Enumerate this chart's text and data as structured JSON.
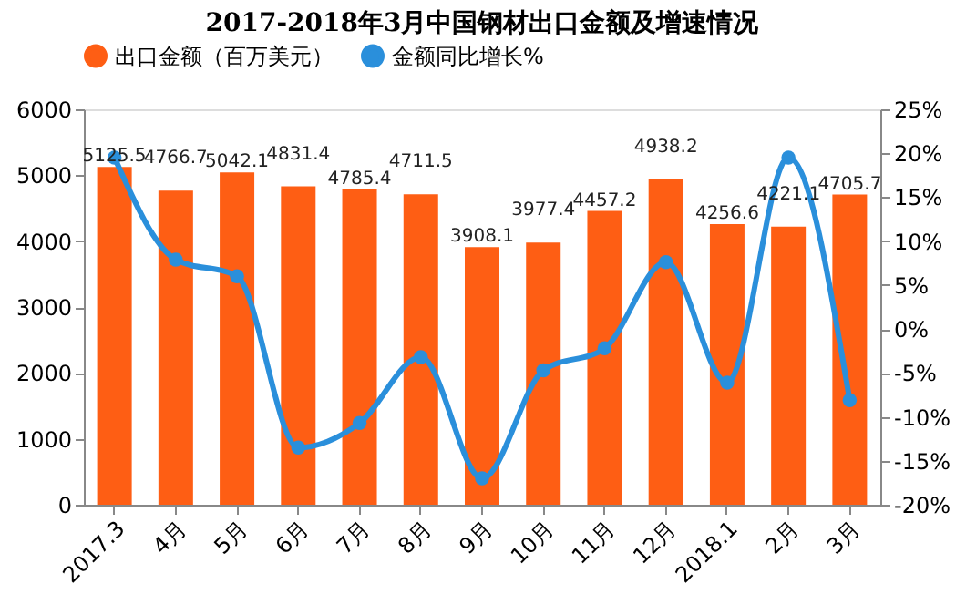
{
  "chart_data": {
    "type": "bar",
    "title": "2017-2018年3月中国钢材出口金额及增速情况",
    "categories": [
      "2017.3",
      "4月",
      "5月",
      "6月",
      "7月",
      "8月",
      "9月",
      "10月",
      "11月",
      "12月",
      "2018.1",
      "2月",
      "3月"
    ],
    "series": [
      {
        "name": "出口金额（百万美元）",
        "color": "#fe5e14",
        "values": [
          5125.5,
          4766.7,
          5042.1,
          4831.4,
          4785.4,
          4711.5,
          3908.1,
          3977.4,
          4457.2,
          4938.2,
          4256.6,
          4221.1,
          4705.7
        ],
        "value_labels": [
          "5125.5",
          "4766.7",
          "5042.1",
          "4831.4",
          "4785.4",
          "4711.5",
          "3908.1",
          "3977.4",
          "4457.2",
          "4938.2",
          "4256.6",
          "4221.1",
          "4705.7"
        ]
      },
      {
        "name": "金额同比增长%",
        "type": "line",
        "axis": "y2",
        "color": "#2a8fdb",
        "values": [
          19.5,
          7.9,
          6.0,
          -13.5,
          -10.7,
          -3.2,
          -17.0,
          -4.7,
          -2.2,
          7.6,
          -6.1,
          19.5,
          -8.1
        ]
      }
    ],
    "ylim": [
      0,
      6000
    ],
    "yticks": [
      0,
      1000,
      2000,
      3000,
      4000,
      5000,
      6000
    ],
    "y2lim": [
      -20,
      25
    ],
    "y2ticks": [
      {
        "value": -20,
        "label": "-20%"
      },
      {
        "value": -15,
        "label": "-15%"
      },
      {
        "value": -10,
        "label": "-10%"
      },
      {
        "value": -5,
        "label": "-5%"
      },
      {
        "value": 0,
        "label": "0%"
      },
      {
        "value": 5,
        "label": "5%"
      },
      {
        "value": 10,
        "label": "10%"
      },
      {
        "value": 15,
        "label": "15%"
      },
      {
        "value": 20,
        "label": "20%"
      },
      {
        "value": 25,
        "label": "25%"
      }
    ],
    "legend": "top",
    "marker": "circle",
    "grid": false
  }
}
